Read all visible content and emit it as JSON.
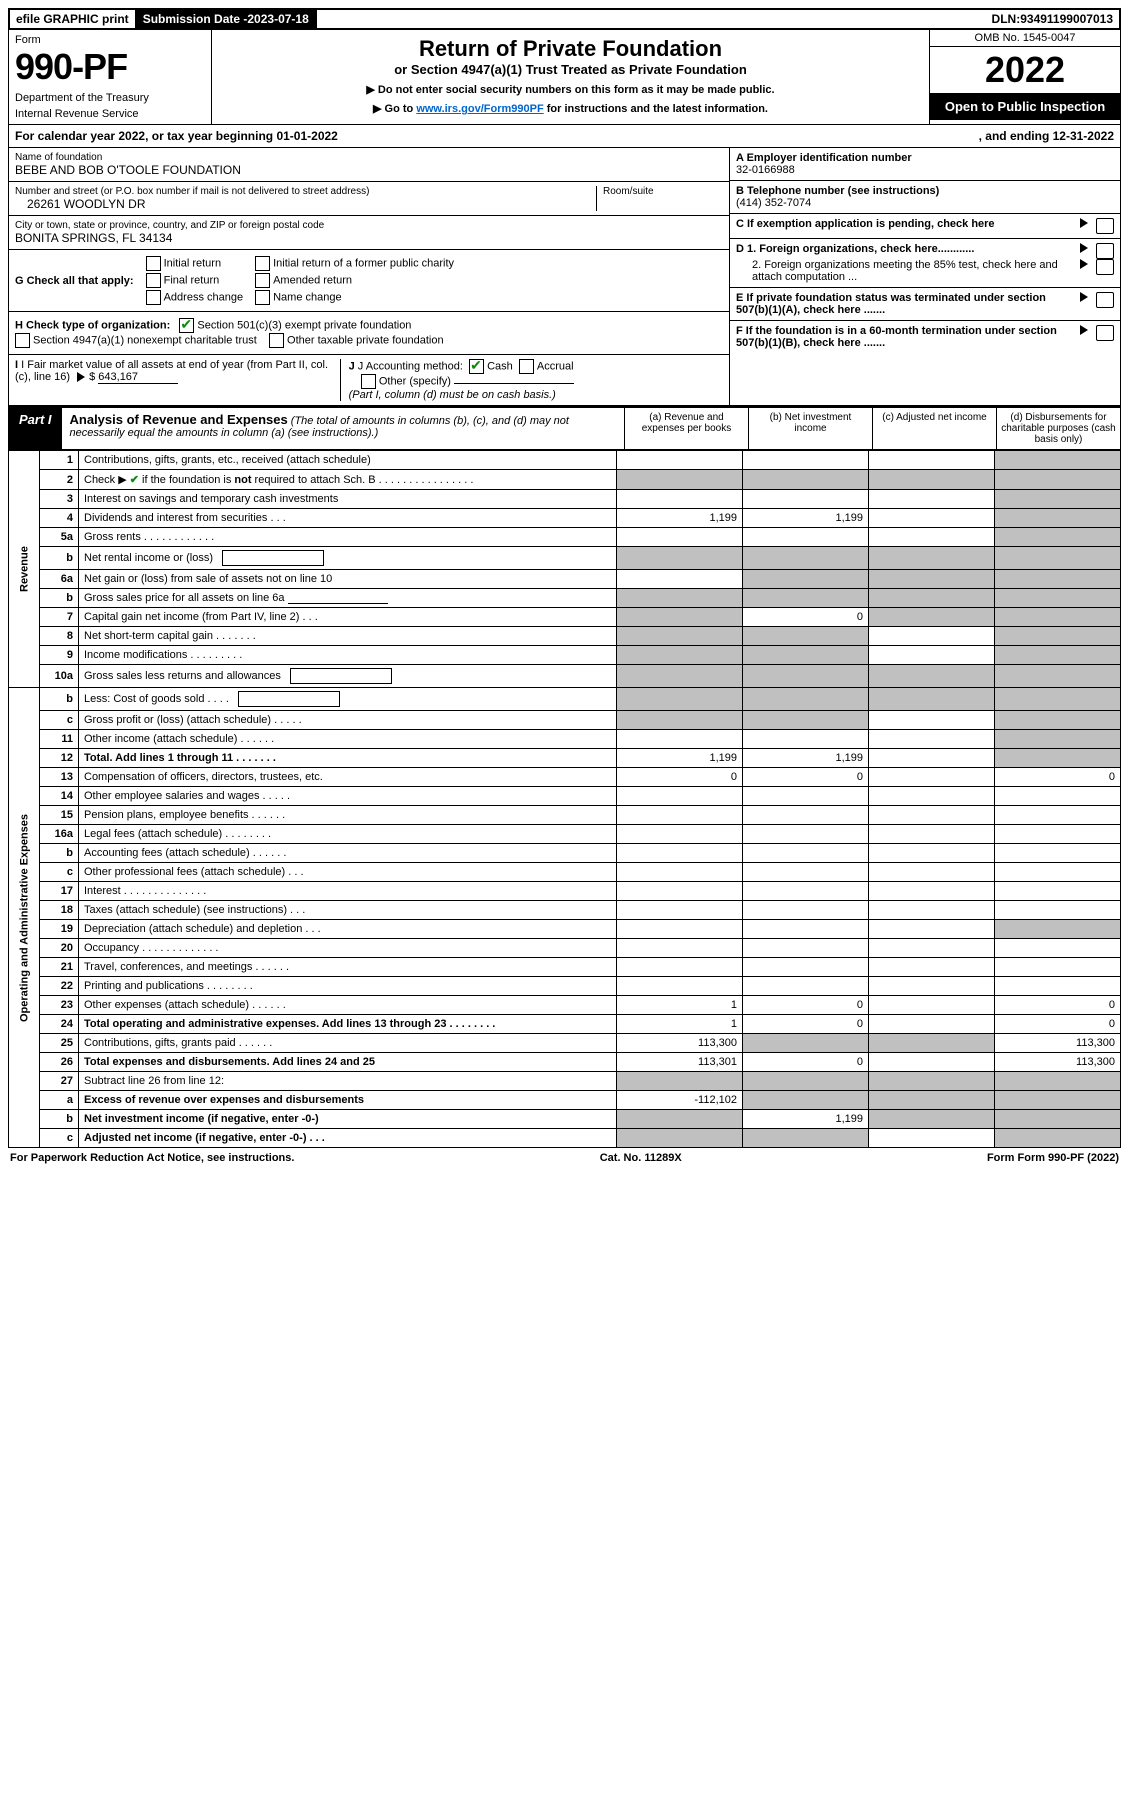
{
  "topbar": {
    "efile": "efile GRAPHIC print",
    "subdate_label": "Submission Date - ",
    "subdate": "2023-07-18",
    "dln_label": "DLN: ",
    "dln": "93491199007013"
  },
  "header": {
    "form_label": "Form",
    "form_number": "990-PF",
    "dept1": "Department of the Treasury",
    "dept2": "Internal Revenue Service",
    "title": "Return of Private Foundation",
    "subtitle": "or Section 4947(a)(1) Trust Treated as Private Foundation",
    "inst1": "▶ Do not enter social security numbers on this form as it may be made public.",
    "inst2_pre": "▶ Go to ",
    "inst2_link": "www.irs.gov/Form990PF",
    "inst2_post": " for instructions and the latest information.",
    "omb": "OMB No. 1545-0047",
    "year": "2022",
    "open": "Open to Public Inspection"
  },
  "calyear": {
    "pre": "For calendar year 2022, or tax year beginning ",
    "begin": "01-01-2022",
    "mid": ", and ending ",
    "end": "12-31-2022"
  },
  "entity": {
    "name_label": "Name of foundation",
    "name": "BEBE AND BOB O'TOOLE FOUNDATION",
    "addr_label": "Number and street (or P.O. box number if mail is not delivered to street address)",
    "addr": "26261 WOODLYN DR",
    "room_label": "Room/suite",
    "city_label": "City or town, state or province, country, and ZIP or foreign postal code",
    "city": "BONITA SPRINGS, FL  34134",
    "ein_label": "A Employer identification number",
    "ein": "32-0166988",
    "tel_label": "B Telephone number (see instructions)",
    "tel": "(414) 352-7074",
    "c_label": "C  If exemption application is pending, check here",
    "d1": "D 1. Foreign organizations, check here............",
    "d2": "2. Foreign organizations meeting the 85% test, check here and attach computation ...",
    "e": "E  If private foundation status was terminated under section 507(b)(1)(A), check here .......",
    "f": "F  If the foundation is in a 60-month termination under section 507(b)(1)(B), check here .......",
    "g_label": "G Check all that apply:",
    "g_opts": [
      "Initial return",
      "Final return",
      "Address change",
      "Initial return of a former public charity",
      "Amended return",
      "Name change"
    ],
    "h_label": "H Check type of organization:",
    "h_opt1": "Section 501(c)(3) exempt private foundation",
    "h_opt2": "Section 4947(a)(1) nonexempt charitable trust",
    "h_opt3": "Other taxable private foundation",
    "i_label": "I Fair market value of all assets at end of year (from Part II, col. (c), line 16)",
    "i_val": "643,167",
    "j_label": "J Accounting method:",
    "j_cash": "Cash",
    "j_acc": "Accrual",
    "j_other": "Other (specify)",
    "j_note": "(Part I, column (d) must be on cash basis.)"
  },
  "part1": {
    "tag": "Part I",
    "title": "Analysis of Revenue and Expenses",
    "note": "(The total of amounts in columns (b), (c), and (d) may not necessarily equal the amounts in column (a) (see instructions).)",
    "cols": {
      "a": "(a)   Revenue and expenses per books",
      "b": "(b)   Net investment income",
      "c": "(c)   Adjusted net income",
      "d": "(d)   Disbursements for charitable purposes (cash basis only)"
    }
  },
  "sidelabels": {
    "rev": "Revenue",
    "oae": "Operating and Administrative Expenses"
  },
  "rows": [
    {
      "n": "1",
      "d": "Contributions, gifts, grants, etc., received (attach schedule)",
      "a": "",
      "b": "",
      "c": "",
      "dd": "",
      "sa": false,
      "sb": false,
      "sc": false,
      "sd": true
    },
    {
      "n": "2",
      "d": "Check ▶ ✔ if the foundation is not required to attach Sch. B   .  .  .  .  .  .  .  .  .  .  .  .  .  .  .  .",
      "a": "",
      "b": "",
      "c": "",
      "dd": "",
      "sa": true,
      "sb": true,
      "sc": true,
      "sd": true,
      "bold_not": true
    },
    {
      "n": "3",
      "d": "Interest on savings and temporary cash investments",
      "a": "",
      "b": "",
      "c": "",
      "dd": "",
      "sa": false,
      "sb": false,
      "sc": false,
      "sd": true
    },
    {
      "n": "4",
      "d": "Dividends and interest from securities    .   .   .",
      "a": "1,199",
      "b": "1,199",
      "c": "",
      "dd": "",
      "sa": false,
      "sb": false,
      "sc": false,
      "sd": true
    },
    {
      "n": "5a",
      "d": "Gross rents    .   .   .   .   .   .   .   .   .   .   .   .",
      "a": "",
      "b": "",
      "c": "",
      "dd": "",
      "sa": false,
      "sb": false,
      "sc": false,
      "sd": true
    },
    {
      "n": "b",
      "d": "Net rental income or (loss)",
      "a": "",
      "b": "",
      "c": "",
      "dd": "",
      "sa": true,
      "sb": true,
      "sc": true,
      "sd": true,
      "inline_box": true
    },
    {
      "n": "6a",
      "d": "Net gain or (loss) from sale of assets not on line 10",
      "a": "",
      "b": "",
      "c": "",
      "dd": "",
      "sa": false,
      "sb": true,
      "sc": true,
      "sd": true
    },
    {
      "n": "b",
      "d": "Gross sales price for all assets on line 6a",
      "a": "",
      "b": "",
      "c": "",
      "dd": "",
      "sa": true,
      "sb": true,
      "sc": true,
      "sd": true,
      "inline_line": true
    },
    {
      "n": "7",
      "d": "Capital gain net income (from Part IV, line 2)   .   .   .",
      "a": "",
      "b": "0",
      "c": "",
      "dd": "",
      "sa": true,
      "sb": false,
      "sc": true,
      "sd": true
    },
    {
      "n": "8",
      "d": "Net short-term capital gain   .   .   .   .   .   .   .",
      "a": "",
      "b": "",
      "c": "",
      "dd": "",
      "sa": true,
      "sb": true,
      "sc": false,
      "sd": true
    },
    {
      "n": "9",
      "d": "Income modifications  .   .   .   .   .   .   .   .   .",
      "a": "",
      "b": "",
      "c": "",
      "dd": "",
      "sa": true,
      "sb": true,
      "sc": false,
      "sd": true
    },
    {
      "n": "10a",
      "d": "Gross sales less returns and allowances",
      "a": "",
      "b": "",
      "c": "",
      "dd": "",
      "sa": true,
      "sb": true,
      "sc": true,
      "sd": true,
      "inline_box": true
    },
    {
      "n": "b",
      "d": "Less: Cost of goods sold    .   .   .   .",
      "a": "",
      "b": "",
      "c": "",
      "dd": "",
      "sa": true,
      "sb": true,
      "sc": true,
      "sd": true,
      "inline_box": true
    },
    {
      "n": "c",
      "d": "Gross profit or (loss) (attach schedule)    .   .   .   .   .",
      "a": "",
      "b": "",
      "c": "",
      "dd": "",
      "sa": true,
      "sb": true,
      "sc": false,
      "sd": true
    },
    {
      "n": "11",
      "d": "Other income (attach schedule)    .   .   .   .   .   .",
      "a": "",
      "b": "",
      "c": "",
      "dd": "",
      "sa": false,
      "sb": false,
      "sc": false,
      "sd": true
    },
    {
      "n": "12",
      "d": "Total. Add lines 1 through 11   .   .   .   .   .   .   .",
      "a": "1,199",
      "b": "1,199",
      "c": "",
      "dd": "",
      "sa": false,
      "sb": false,
      "sc": false,
      "sd": true,
      "bold": true
    },
    {
      "n": "13",
      "d": "Compensation of officers, directors, trustees, etc.",
      "a": "0",
      "b": "0",
      "c": "",
      "dd": "0",
      "sa": false,
      "sb": false,
      "sc": false,
      "sd": false
    },
    {
      "n": "14",
      "d": "Other employee salaries and wages   .   .   .   .   .",
      "a": "",
      "b": "",
      "c": "",
      "dd": "",
      "sa": false,
      "sb": false,
      "sc": false,
      "sd": false
    },
    {
      "n": "15",
      "d": "Pension plans, employee benefits  .   .   .   .   .   .",
      "a": "",
      "b": "",
      "c": "",
      "dd": "",
      "sa": false,
      "sb": false,
      "sc": false,
      "sd": false
    },
    {
      "n": "16a",
      "d": "Legal fees (attach schedule) .   .   .   .   .   .   .   .",
      "a": "",
      "b": "",
      "c": "",
      "dd": "",
      "sa": false,
      "sb": false,
      "sc": false,
      "sd": false
    },
    {
      "n": "b",
      "d": "Accounting fees (attach schedule)  .   .   .   .   .   .",
      "a": "",
      "b": "",
      "c": "",
      "dd": "",
      "sa": false,
      "sb": false,
      "sc": false,
      "sd": false
    },
    {
      "n": "c",
      "d": "Other professional fees (attach schedule)    .   .   .",
      "a": "",
      "b": "",
      "c": "",
      "dd": "",
      "sa": false,
      "sb": false,
      "sc": false,
      "sd": false
    },
    {
      "n": "17",
      "d": "Interest  .   .   .   .   .   .   .   .   .   .   .   .   .   .",
      "a": "",
      "b": "",
      "c": "",
      "dd": "",
      "sa": false,
      "sb": false,
      "sc": false,
      "sd": false
    },
    {
      "n": "18",
      "d": "Taxes (attach schedule) (see instructions)    .   .   .",
      "a": "",
      "b": "",
      "c": "",
      "dd": "",
      "sa": false,
      "sb": false,
      "sc": false,
      "sd": false
    },
    {
      "n": "19",
      "d": "Depreciation (attach schedule) and depletion   .   .   .",
      "a": "",
      "b": "",
      "c": "",
      "dd": "",
      "sa": false,
      "sb": false,
      "sc": false,
      "sd": true
    },
    {
      "n": "20",
      "d": "Occupancy .   .   .   .   .   .   .   .   .   .   .   .   .",
      "a": "",
      "b": "",
      "c": "",
      "dd": "",
      "sa": false,
      "sb": false,
      "sc": false,
      "sd": false
    },
    {
      "n": "21",
      "d": "Travel, conferences, and meetings  .   .   .   .   .   .",
      "a": "",
      "b": "",
      "c": "",
      "dd": "",
      "sa": false,
      "sb": false,
      "sc": false,
      "sd": false
    },
    {
      "n": "22",
      "d": "Printing and publications  .   .   .   .   .   .   .   .",
      "a": "",
      "b": "",
      "c": "",
      "dd": "",
      "sa": false,
      "sb": false,
      "sc": false,
      "sd": false
    },
    {
      "n": "23",
      "d": "Other expenses (attach schedule)  .   .   .   .   .   .",
      "a": "1",
      "b": "0",
      "c": "",
      "dd": "0",
      "sa": false,
      "sb": false,
      "sc": false,
      "sd": false
    },
    {
      "n": "24",
      "d": "Total operating and administrative expenses. Add lines 13 through 23   .   .   .   .   .   .   .   .",
      "a": "1",
      "b": "0",
      "c": "",
      "dd": "0",
      "sa": false,
      "sb": false,
      "sc": false,
      "sd": false,
      "bold": true
    },
    {
      "n": "25",
      "d": "Contributions, gifts, grants paid    .   .   .   .   .   .",
      "a": "113,300",
      "b": "",
      "c": "",
      "dd": "113,300",
      "sa": false,
      "sb": true,
      "sc": true,
      "sd": false
    },
    {
      "n": "26",
      "d": "Total expenses and disbursements. Add lines 24 and 25",
      "a": "113,301",
      "b": "0",
      "c": "",
      "dd": "113,300",
      "sa": false,
      "sb": false,
      "sc": false,
      "sd": false,
      "bold": true
    },
    {
      "n": "27",
      "d": "Subtract line 26 from line 12:",
      "a": "",
      "b": "",
      "c": "",
      "dd": "",
      "sa": true,
      "sb": true,
      "sc": true,
      "sd": true
    },
    {
      "n": "a",
      "d": "Excess of revenue over expenses and disbursements",
      "a": "-112,102",
      "b": "",
      "c": "",
      "dd": "",
      "sa": false,
      "sb": true,
      "sc": true,
      "sd": true,
      "bold": true
    },
    {
      "n": "b",
      "d": "Net investment income (if negative, enter -0-)",
      "a": "",
      "b": "1,199",
      "c": "",
      "dd": "",
      "sa": true,
      "sb": false,
      "sc": true,
      "sd": true,
      "bold": true
    },
    {
      "n": "c",
      "d": "Adjusted net income (if negative, enter -0-)   .   .   .",
      "a": "",
      "b": "",
      "c": "",
      "dd": "",
      "sa": true,
      "sb": true,
      "sc": false,
      "sd": true,
      "bold": true
    }
  ],
  "footer": {
    "left": "For Paperwork Reduction Act Notice, see instructions.",
    "mid": "Cat. No. 11289X",
    "right": "Form 990-PF (2022)"
  }
}
